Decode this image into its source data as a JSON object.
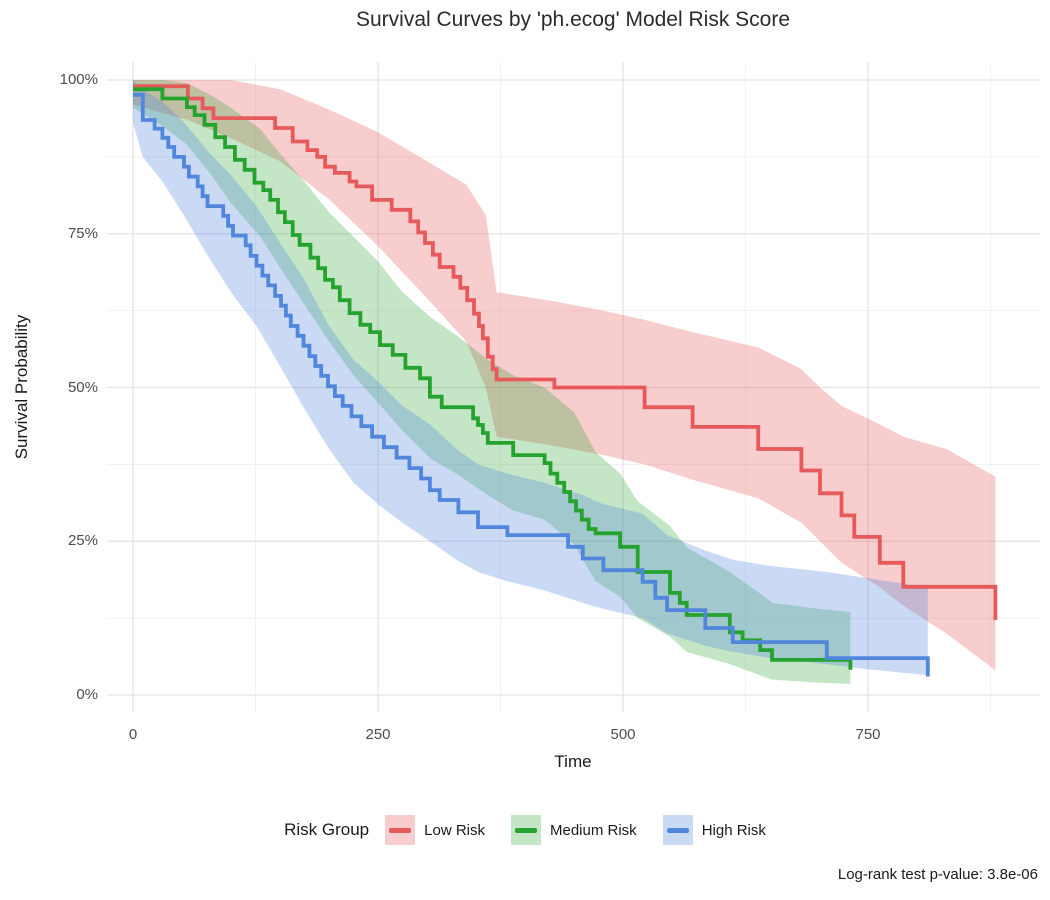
{
  "chart_data": {
    "type": "line",
    "subtype": "kaplan-meier-step-with-confidence-ribbons",
    "title": "Survival Curves by 'ph.ecog' Model Risk Score",
    "xlabel": "Time",
    "ylabel": "Survival Probability",
    "caption": "Log-rank test p-value: 3.8e-06",
    "legend_title": "Risk Group",
    "legend_position": "bottom",
    "background_color": "#ffffff",
    "grid_color_major": "#e3e3e3",
    "grid_color_minor": "#f1f1f1",
    "axis_text_color": "#4d4d4d",
    "xlim": [
      -27,
      925
    ],
    "ylim": [
      0,
      1
    ],
    "x_ticks": [
      {
        "value": 0,
        "label": "0"
      },
      {
        "value": 250,
        "label": "250"
      },
      {
        "value": 500,
        "label": "500"
      },
      {
        "value": 750,
        "label": "750"
      }
    ],
    "y_ticks": [
      {
        "value": 1.0,
        "label": "100%"
      },
      {
        "value": 0.75,
        "label": "75%"
      },
      {
        "value": 0.5,
        "label": "50%"
      },
      {
        "value": 0.25,
        "label": "25%"
      },
      {
        "value": 0.0,
        "label": "0%"
      }
    ],
    "x_minor": [
      125,
      375,
      625,
      875
    ],
    "y_minor": [
      0.125,
      0.375,
      0.625,
      0.875
    ],
    "series": [
      {
        "name": "Low Risk",
        "color": "#e65a5b",
        "fill": "rgba(230,90,91,0.30)",
        "steps": [
          [
            0,
            0.99
          ],
          [
            56,
            0.97
          ],
          [
            71,
            0.954
          ],
          [
            82,
            0.938
          ],
          [
            145,
            0.922
          ],
          [
            163,
            0.9
          ],
          [
            178,
            0.886
          ],
          [
            188,
            0.875
          ],
          [
            196,
            0.859
          ],
          [
            206,
            0.849
          ],
          [
            221,
            0.835
          ],
          [
            228,
            0.827
          ],
          [
            244,
            0.805
          ],
          [
            264,
            0.789
          ],
          [
            283,
            0.77
          ],
          [
            291,
            0.752
          ],
          [
            298,
            0.735
          ],
          [
            306,
            0.716
          ],
          [
            313,
            0.696
          ],
          [
            327,
            0.68
          ],
          [
            334,
            0.662
          ],
          [
            341,
            0.642
          ],
          [
            348,
            0.62
          ],
          [
            353,
            0.6
          ],
          [
            357,
            0.58
          ],
          [
            362,
            0.55
          ],
          [
            367,
            0.53
          ],
          [
            371,
            0.513
          ],
          [
            430,
            0.5
          ],
          [
            522,
            0.468
          ],
          [
            571,
            0.436
          ],
          [
            638,
            0.4
          ],
          [
            682,
            0.365
          ],
          [
            701,
            0.328
          ],
          [
            723,
            0.292
          ],
          [
            736,
            0.257
          ],
          [
            762,
            0.215
          ],
          [
            786,
            0.176
          ],
          [
            880,
            0.122
          ]
        ],
        "ribbon": [
          [
            0,
            1.0,
            0.96
          ],
          [
            56,
            1.0,
            0.935
          ],
          [
            100,
            1.0,
            0.905
          ],
          [
            150,
            0.985,
            0.868
          ],
          [
            200,
            0.952,
            0.806
          ],
          [
            250,
            0.915,
            0.73
          ],
          [
            300,
            0.868,
            0.645
          ],
          [
            340,
            0.83,
            0.575
          ],
          [
            360,
            0.78,
            0.5
          ],
          [
            371,
            0.655,
            0.42
          ],
          [
            430,
            0.64,
            0.405
          ],
          [
            480,
            0.625,
            0.39
          ],
          [
            522,
            0.61,
            0.375
          ],
          [
            571,
            0.59,
            0.35
          ],
          [
            638,
            0.565,
            0.32
          ],
          [
            682,
            0.53,
            0.28
          ],
          [
            701,
            0.5,
            0.25
          ],
          [
            723,
            0.47,
            0.215
          ],
          [
            762,
            0.44,
            0.175
          ],
          [
            786,
            0.42,
            0.145
          ],
          [
            830,
            0.4,
            0.1
          ],
          [
            880,
            0.355,
            0.04
          ]
        ]
      },
      {
        "name": "Medium Risk",
        "color": "#26a32e",
        "fill": "rgba(38,163,46,0.27)",
        "steps": [
          [
            0,
            0.985
          ],
          [
            30,
            0.97
          ],
          [
            55,
            0.956
          ],
          [
            63,
            0.943
          ],
          [
            73,
            0.927
          ],
          [
            84,
            0.907
          ],
          [
            94,
            0.891
          ],
          [
            104,
            0.87
          ],
          [
            114,
            0.854
          ],
          [
            124,
            0.833
          ],
          [
            133,
            0.821
          ],
          [
            140,
            0.805
          ],
          [
            148,
            0.785
          ],
          [
            155,
            0.769
          ],
          [
            163,
            0.748
          ],
          [
            170,
            0.732
          ],
          [
            181,
            0.711
          ],
          [
            189,
            0.694
          ],
          [
            196,
            0.675
          ],
          [
            204,
            0.663
          ],
          [
            211,
            0.642
          ],
          [
            221,
            0.621
          ],
          [
            232,
            0.602
          ],
          [
            242,
            0.59
          ],
          [
            252,
            0.569
          ],
          [
            265,
            0.553
          ],
          [
            278,
            0.532
          ],
          [
            293,
            0.515
          ],
          [
            303,
            0.485
          ],
          [
            315,
            0.468
          ],
          [
            347,
            0.45
          ],
          [
            352,
            0.439
          ],
          [
            357,
            0.426
          ],
          [
            362,
            0.41
          ],
          [
            388,
            0.39
          ],
          [
            420,
            0.377
          ],
          [
            426,
            0.36
          ],
          [
            433,
            0.345
          ],
          [
            440,
            0.33
          ],
          [
            446,
            0.315
          ],
          [
            452,
            0.3
          ],
          [
            458,
            0.285
          ],
          [
            465,
            0.27
          ],
          [
            472,
            0.263
          ],
          [
            497,
            0.241
          ],
          [
            515,
            0.2
          ],
          [
            548,
            0.166
          ],
          [
            558,
            0.15
          ],
          [
            565,
            0.13
          ],
          [
            609,
            0.102
          ],
          [
            622,
            0.089
          ],
          [
            640,
            0.073
          ],
          [
            652,
            0.057
          ],
          [
            732,
            0.041
          ]
        ],
        "ribbon": [
          [
            0,
            1.0,
            0.955
          ],
          [
            30,
            1.0,
            0.925
          ],
          [
            55,
            0.995,
            0.895
          ],
          [
            80,
            0.975,
            0.845
          ],
          [
            100,
            0.955,
            0.8
          ],
          [
            130,
            0.92,
            0.745
          ],
          [
            150,
            0.88,
            0.695
          ],
          [
            175,
            0.835,
            0.635
          ],
          [
            200,
            0.785,
            0.575
          ],
          [
            225,
            0.745,
            0.52
          ],
          [
            250,
            0.705,
            0.475
          ],
          [
            275,
            0.655,
            0.43
          ],
          [
            303,
            0.615,
            0.385
          ],
          [
            330,
            0.585,
            0.36
          ],
          [
            362,
            0.545,
            0.325
          ],
          [
            388,
            0.52,
            0.3
          ],
          [
            420,
            0.5,
            0.285
          ],
          [
            450,
            0.46,
            0.245
          ],
          [
            472,
            0.395,
            0.185
          ],
          [
            497,
            0.36,
            0.16
          ],
          [
            515,
            0.315,
            0.125
          ],
          [
            548,
            0.275,
            0.095
          ],
          [
            565,
            0.24,
            0.07
          ],
          [
            609,
            0.2,
            0.05
          ],
          [
            640,
            0.165,
            0.032
          ],
          [
            652,
            0.15,
            0.025
          ],
          [
            700,
            0.14,
            0.02
          ],
          [
            732,
            0.135,
            0.018
          ]
        ]
      },
      {
        "name": "High Risk",
        "color": "#5186dd",
        "fill": "rgba(81,134,221,0.30)",
        "steps": [
          [
            0,
            0.976
          ],
          [
            10,
            0.935
          ],
          [
            22,
            0.921
          ],
          [
            30,
            0.906
          ],
          [
            36,
            0.891
          ],
          [
            42,
            0.875
          ],
          [
            52,
            0.859
          ],
          [
            57,
            0.843
          ],
          [
            66,
            0.827
          ],
          [
            71,
            0.811
          ],
          [
            76,
            0.795
          ],
          [
            92,
            0.779
          ],
          [
            97,
            0.763
          ],
          [
            102,
            0.747
          ],
          [
            115,
            0.731
          ],
          [
            120,
            0.714
          ],
          [
            126,
            0.698
          ],
          [
            132,
            0.682
          ],
          [
            138,
            0.666
          ],
          [
            145,
            0.649
          ],
          [
            151,
            0.633
          ],
          [
            156,
            0.617
          ],
          [
            161,
            0.6
          ],
          [
            168,
            0.584
          ],
          [
            174,
            0.568
          ],
          [
            180,
            0.551
          ],
          [
            186,
            0.535
          ],
          [
            192,
            0.519
          ],
          [
            199,
            0.502
          ],
          [
            206,
            0.486
          ],
          [
            214,
            0.47
          ],
          [
            223,
            0.453
          ],
          [
            233,
            0.437
          ],
          [
            244,
            0.42
          ],
          [
            256,
            0.403
          ],
          [
            269,
            0.386
          ],
          [
            282,
            0.369
          ],
          [
            294,
            0.352
          ],
          [
            303,
            0.333
          ],
          [
            313,
            0.317
          ],
          [
            332,
            0.297
          ],
          [
            352,
            0.273
          ],
          [
            382,
            0.26
          ],
          [
            444,
            0.241
          ],
          [
            459,
            0.222
          ],
          [
            480,
            0.203
          ],
          [
            520,
            0.184
          ],
          [
            533,
            0.158
          ],
          [
            545,
            0.138
          ],
          [
            584,
            0.109
          ],
          [
            612,
            0.086
          ],
          [
            708,
            0.06
          ],
          [
            811,
            0.03
          ]
        ],
        "ribbon": [
          [
            0,
            1.0,
            0.93
          ],
          [
            10,
            0.985,
            0.875
          ],
          [
            30,
            0.965,
            0.835
          ],
          [
            50,
            0.935,
            0.785
          ],
          [
            76,
            0.885,
            0.715
          ],
          [
            100,
            0.845,
            0.655
          ],
          [
            126,
            0.795,
            0.6
          ],
          [
            150,
            0.735,
            0.535
          ],
          [
            175,
            0.675,
            0.465
          ],
          [
            200,
            0.6,
            0.4
          ],
          [
            225,
            0.545,
            0.345
          ],
          [
            250,
            0.51,
            0.31
          ],
          [
            275,
            0.47,
            0.28
          ],
          [
            303,
            0.44,
            0.25
          ],
          [
            330,
            0.4,
            0.22
          ],
          [
            352,
            0.375,
            0.2
          ],
          [
            382,
            0.36,
            0.185
          ],
          [
            420,
            0.345,
            0.17
          ],
          [
            459,
            0.325,
            0.15
          ],
          [
            480,
            0.31,
            0.14
          ],
          [
            520,
            0.295,
            0.125
          ],
          [
            545,
            0.26,
            0.1
          ],
          [
            584,
            0.235,
            0.08
          ],
          [
            612,
            0.22,
            0.07
          ],
          [
            650,
            0.21,
            0.06
          ],
          [
            708,
            0.2,
            0.05
          ],
          [
            750,
            0.19,
            0.042
          ],
          [
            811,
            0.175,
            0.032
          ]
        ]
      }
    ]
  }
}
